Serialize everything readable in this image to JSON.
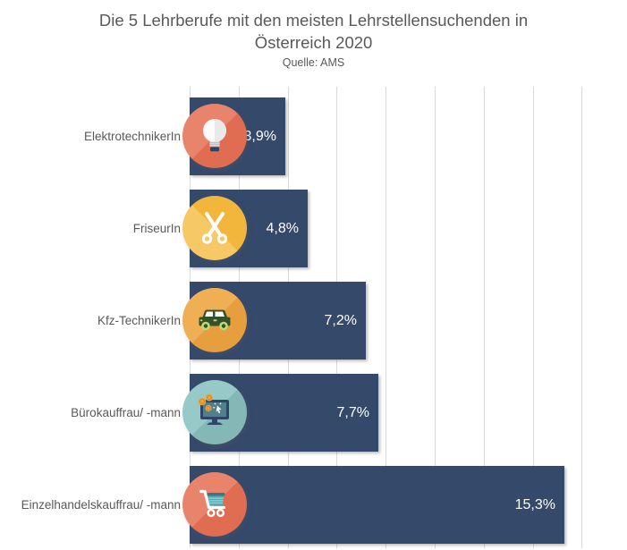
{
  "header": {
    "title_line1": "Die 5 Lehrberufe mit den meisten Lehrstellensuchenden in",
    "title_line2": "Österreich 2020",
    "subtitle": "Quelle: AMS"
  },
  "chart_data": {
    "type": "bar",
    "orientation": "horizontal",
    "title": "Die 5 Lehrberufe mit den meisten Lehrstellensuchenden in Österreich 2020",
    "subtitle": "Quelle: AMS",
    "categories": [
      "ElektrotechnikerIn",
      "FriseurIn",
      "Kfz-TechnikerIn",
      "Bürokauffrau/ -mann",
      "Einzelhandelskauffrau/ -mann"
    ],
    "values": [
      3.9,
      4.8,
      7.2,
      7.7,
      15.3
    ],
    "value_labels": [
      "3,9%",
      "4,8%",
      "7,2%",
      "7,7%",
      "15,3%"
    ],
    "icons": [
      "lightbulb",
      "scissors",
      "car",
      "monitor-coins",
      "shopping-cart"
    ],
    "xlim": [
      0,
      16
    ],
    "gridline_step": 2,
    "grid": true,
    "legend": false,
    "xlabel": "",
    "ylabel": ""
  },
  "colors": {
    "bar": "#35496B",
    "title_text": "#595959",
    "category_text": "#595959",
    "value_text": "#FFFFFF",
    "gridline": "#D9D9D9",
    "icon_circle_salmon": "#E8816A",
    "icon_circle_gold": "#F3B73D",
    "icon_circle_orange": "#EDAC50",
    "icon_circle_teal": "#92C6C4"
  }
}
